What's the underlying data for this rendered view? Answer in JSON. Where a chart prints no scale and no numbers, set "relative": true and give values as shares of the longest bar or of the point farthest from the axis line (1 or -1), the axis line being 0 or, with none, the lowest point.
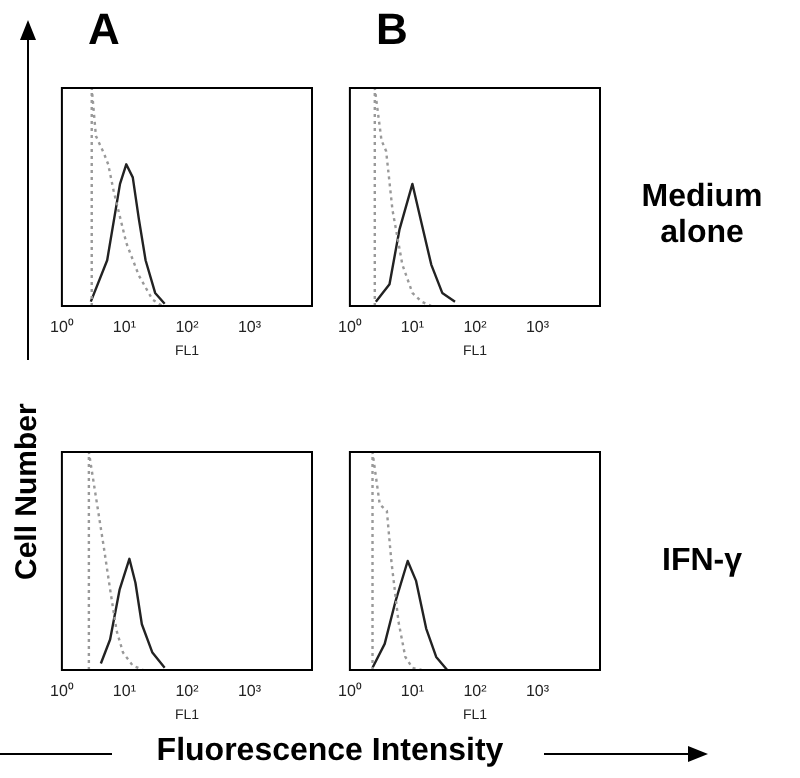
{
  "chart_data": [
    {
      "type": "line",
      "title": "A",
      "ylabel": "Cell Number",
      "xlabel": "FL1",
      "relative": true,
      "log": "x",
      "xlim": [
        1,
        10000
      ],
      "xticks": [
        {
          "value": 1,
          "label": "10⁰"
        },
        {
          "value": 10,
          "label": "10¹"
        },
        {
          "value": 100,
          "label": "10²"
        },
        {
          "value": 1000,
          "label": "10³"
        }
      ],
      "grid": false,
      "legend": false,
      "marker": "none",
      "series": [
        {
          "color": "#999999",
          "line_style": "dotted",
          "x": [
            3,
            3,
            3.5,
            4.7,
            5.5,
            6.7,
            10.7,
            17,
            28,
            40
          ],
          "values": [
            0,
            1,
            0.78,
            0.7,
            0.65,
            0.53,
            0.29,
            0.14,
            0.03,
            0
          ]
        },
        {
          "color": "#222222",
          "line_style": "solid",
          "x": [
            2.9,
            5.3,
            8.5,
            10.7,
            13.6,
            17,
            21.8,
            31,
            44
          ],
          "values": [
            0.02,
            0.21,
            0.56,
            0.65,
            0.59,
            0.4,
            0.21,
            0.06,
            0.01
          ]
        }
      ]
    },
    {
      "type": "line",
      "title": "B",
      "xlabel": "FL1",
      "relative": true,
      "log": "x",
      "xlim": [
        1,
        10000
      ],
      "xticks": [
        {
          "value": 1,
          "label": "10⁰"
        },
        {
          "value": 10,
          "label": "10¹"
        },
        {
          "value": 100,
          "label": "10²"
        },
        {
          "value": 1000,
          "label": "10³"
        }
      ],
      "grid": false,
      "legend": false,
      "marker": "none",
      "annotations": [
        "Medium alone"
      ],
      "series": [
        {
          "color": "#999999",
          "line_style": "dotted",
          "x": [
            2.5,
            2.5,
            3.2,
            3.8,
            4.8,
            6.9,
            10,
            14,
            20
          ],
          "values": [
            0,
            1,
            0.76,
            0.71,
            0.44,
            0.19,
            0.06,
            0.02,
            0
          ]
        },
        {
          "color": "#222222",
          "line_style": "solid",
          "x": [
            2.6,
            4.3,
            6.2,
            10,
            14,
            20,
            30,
            48
          ],
          "values": [
            0.02,
            0.1,
            0.35,
            0.56,
            0.38,
            0.19,
            0.06,
            0.02
          ]
        }
      ]
    },
    {
      "type": "line",
      "xlabel": "FL1",
      "relative": true,
      "log": "x",
      "xlim": [
        1,
        10000
      ],
      "xticks": [
        {
          "value": 1,
          "label": "10⁰"
        },
        {
          "value": 10,
          "label": "10¹"
        },
        {
          "value": 100,
          "label": "10²"
        },
        {
          "value": 1000,
          "label": "10³"
        }
      ],
      "grid": false,
      "legend": false,
      "marker": "none",
      "annotations": [
        "Fluorescence Intensity"
      ],
      "series": [
        {
          "color": "#999999",
          "line_style": "dotted",
          "x": [
            2.7,
            2.7,
            3.7,
            4.7,
            5.9,
            7.5,
            9.5,
            13.6,
            20
          ],
          "values": [
            0,
            1,
            0.75,
            0.56,
            0.37,
            0.18,
            0.08,
            0.02,
            0
          ]
        },
        {
          "color": "#222222",
          "line_style": "solid",
          "x": [
            4.2,
            5.9,
            8.4,
            12,
            15,
            19,
            28,
            44
          ],
          "values": [
            0.03,
            0.14,
            0.37,
            0.51,
            0.4,
            0.21,
            0.08,
            0.01
          ]
        }
      ]
    },
    {
      "type": "line",
      "xlabel": "FL1",
      "relative": true,
      "log": "x",
      "xlim": [
        1,
        10000
      ],
      "xticks": [
        {
          "value": 1,
          "label": "10⁰"
        },
        {
          "value": 10,
          "label": "10¹"
        },
        {
          "value": 100,
          "label": "10²"
        },
        {
          "value": 1000,
          "label": "10³"
        }
      ],
      "grid": false,
      "legend": false,
      "marker": "none",
      "annotations": [
        "IFN-γ"
      ],
      "series": [
        {
          "color": "#999999",
          "line_style": "dotted",
          "x": [
            2.3,
            2.3,
            3,
            3.9,
            4.6,
            6,
            7.7,
            10,
            14
          ],
          "values": [
            0,
            1,
            0.76,
            0.73,
            0.5,
            0.22,
            0.06,
            0.01,
            0
          ]
        },
        {
          "color": "#222222",
          "line_style": "solid",
          "x": [
            2.3,
            3.6,
            5.3,
            8.4,
            11.4,
            16.6,
            24,
            36
          ],
          "values": [
            0.01,
            0.12,
            0.31,
            0.5,
            0.41,
            0.19,
            0.06,
            0
          ]
        }
      ]
    }
  ]
}
